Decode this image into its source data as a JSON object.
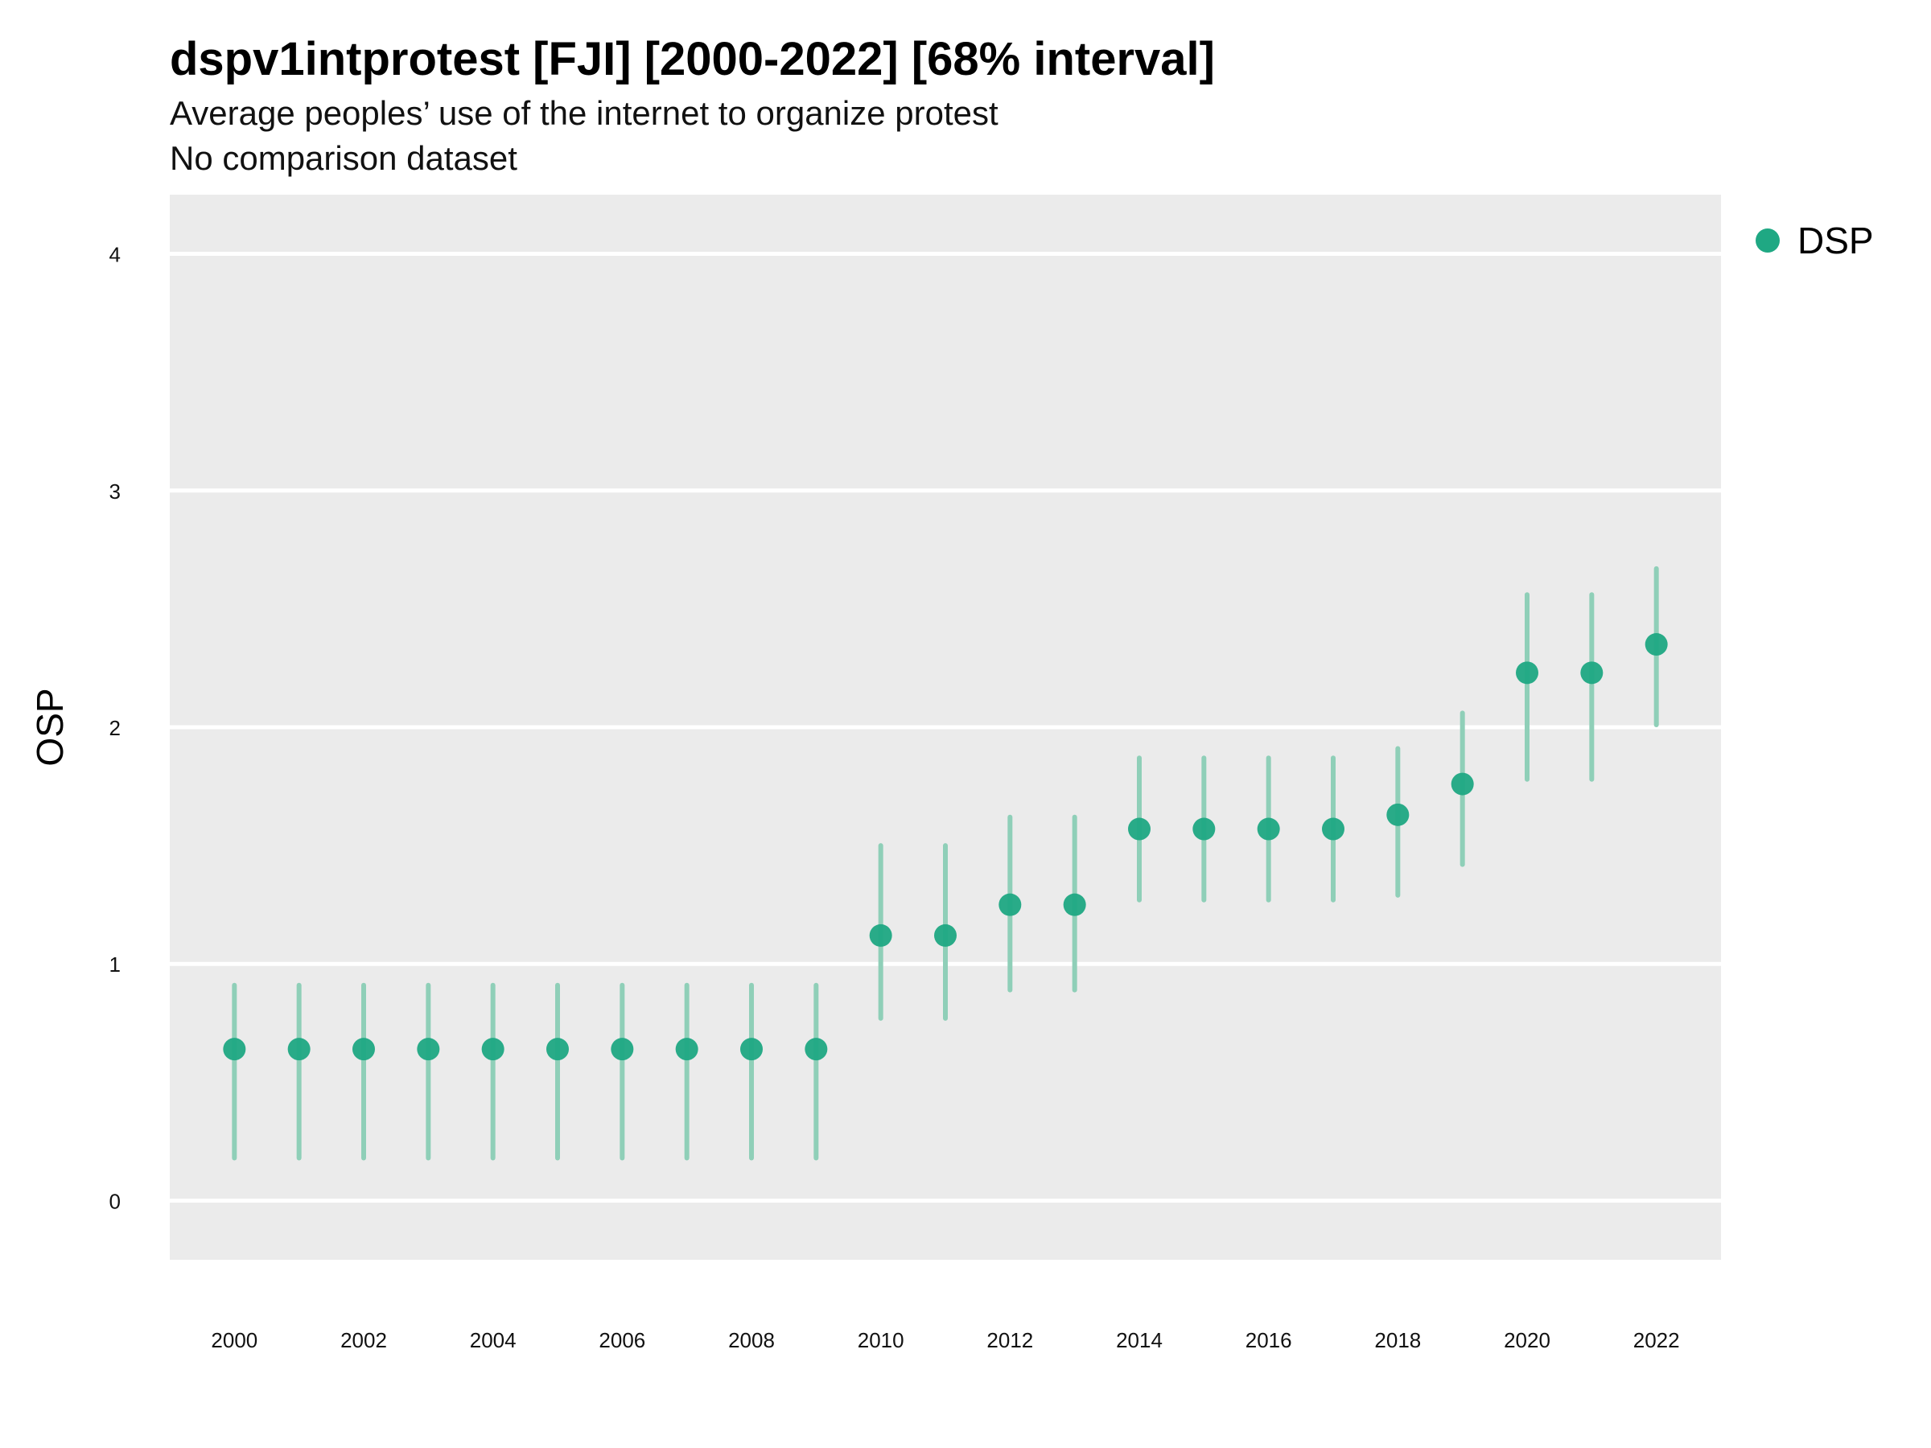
{
  "header": {
    "title": "dspv1intprotest [FJI] [2000-2022] [68% interval]",
    "subtitle": "Average peoples’ use of the internet to organize protest",
    "caption": "No comparison dataset"
  },
  "legend": {
    "label": "DSP",
    "color": "#1fa883"
  },
  "colors": {
    "panel": "#ebebeb",
    "grid": "#ffffff",
    "point": "#1fa883",
    "interval": "#8fcfb8"
  },
  "chart_data": {
    "type": "scatter",
    "title": "dspv1intprotest [FJI] [2000-2022] [68% interval]",
    "ylabel": "OSP",
    "xlabel": "",
    "ylim": [
      -0.25,
      4.25
    ],
    "xlim": [
      1999,
      2023
    ],
    "yticks": [
      0,
      1,
      2,
      3,
      4
    ],
    "xticks": [
      2000,
      2002,
      2004,
      2006,
      2008,
      2010,
      2012,
      2014,
      2016,
      2018,
      2020,
      2022
    ],
    "grid": "horizontal",
    "legend_position": "right",
    "series": [
      {
        "name": "DSP",
        "x": [
          2000,
          2001,
          2002,
          2003,
          2004,
          2005,
          2006,
          2007,
          2008,
          2009,
          2010,
          2011,
          2012,
          2013,
          2014,
          2015,
          2016,
          2017,
          2018,
          2019,
          2020,
          2021,
          2022
        ],
        "y": [
          0.64,
          0.64,
          0.64,
          0.64,
          0.64,
          0.64,
          0.64,
          0.64,
          0.64,
          0.64,
          1.12,
          1.12,
          1.25,
          1.25,
          1.57,
          1.57,
          1.57,
          1.57,
          1.63,
          1.76,
          2.23,
          2.23,
          2.35
        ],
        "lower": [
          0.18,
          0.18,
          0.18,
          0.18,
          0.18,
          0.18,
          0.18,
          0.18,
          0.18,
          0.18,
          0.77,
          0.77,
          0.89,
          0.89,
          1.27,
          1.27,
          1.27,
          1.27,
          1.29,
          1.42,
          1.78,
          1.78,
          2.01
        ],
        "upper": [
          0.91,
          0.91,
          0.91,
          0.91,
          0.91,
          0.91,
          0.91,
          0.91,
          0.91,
          0.91,
          1.5,
          1.5,
          1.62,
          1.62,
          1.87,
          1.87,
          1.87,
          1.87,
          1.91,
          2.06,
          2.56,
          2.56,
          2.67
        ]
      }
    ]
  }
}
